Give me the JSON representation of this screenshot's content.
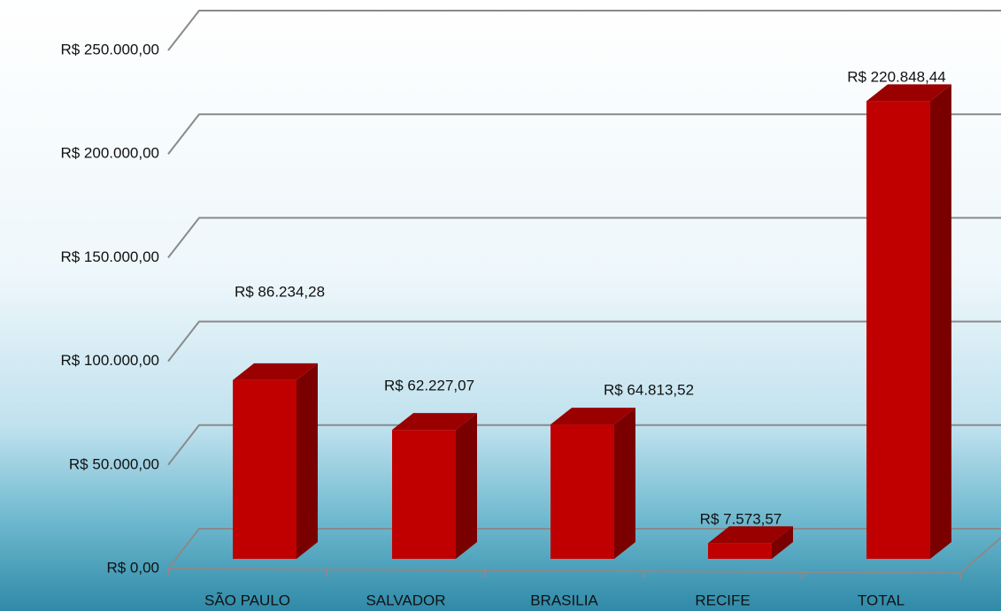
{
  "chart_data": {
    "type": "bar3d",
    "categories": [
      "SÃO PAULO",
      "SALVADOR",
      "BRASILIA",
      "RECIFE",
      "TOTAL"
    ],
    "values": [
      86234.28,
      62227.07,
      64813.52,
      7573.57,
      220848.44
    ],
    "value_labels": [
      "R$ 86.234,28",
      "R$ 62.227,07",
      "R$ 64.813,52",
      "R$ 7.573,57",
      "R$ 220.848,44"
    ],
    "color": "#c00000",
    "ylim": [
      0,
      250000
    ],
    "yticks": [
      {
        "value": 0,
        "label": "R$ 0,00"
      },
      {
        "value": 50000,
        "label": "R$ 50.000,00"
      },
      {
        "value": 100000,
        "label": "R$ 100.000,00"
      },
      {
        "value": 150000,
        "label": "R$ 150.000,00"
      },
      {
        "value": 200000,
        "label": "R$ 200.000,00"
      },
      {
        "value": 250000,
        "label": "R$ 250.000,00"
      }
    ],
    "grid": true
  }
}
